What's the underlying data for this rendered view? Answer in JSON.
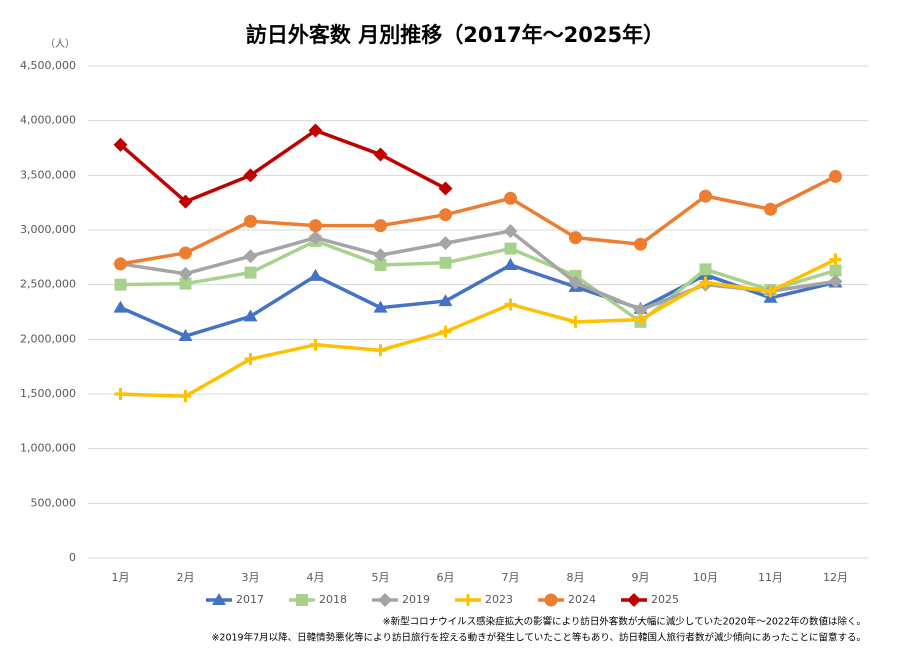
{
  "chart_data": {
    "type": "line",
    "title": "訪日外客数 月別推移（2017年～2025年）",
    "y_unit": "（人）",
    "categories": [
      "1月",
      "2月",
      "3月",
      "4月",
      "5月",
      "6月",
      "7月",
      "8月",
      "9月",
      "10月",
      "11月",
      "12月"
    ],
    "series": [
      {
        "name": "2017",
        "color": "#4472c4",
        "marker": "triangle",
        "values": [
          2290000,
          2030000,
          2210000,
          2580000,
          2290000,
          2350000,
          2680000,
          2480000,
          2280000,
          2590000,
          2380000,
          2520000
        ]
      },
      {
        "name": "2018",
        "color": "#a9d18e",
        "marker": "square",
        "values": [
          2500000,
          2510000,
          2610000,
          2900000,
          2680000,
          2700000,
          2830000,
          2580000,
          2160000,
          2640000,
          2450000,
          2630000
        ]
      },
      {
        "name": "2019",
        "color": "#a5a5a5",
        "marker": "diamond",
        "values": [
          2690000,
          2600000,
          2760000,
          2930000,
          2770000,
          2880000,
          2990000,
          2520000,
          2270000,
          2500000,
          2440000,
          2530000
        ]
      },
      {
        "name": "2023",
        "color": "#ffc000",
        "marker": "plus",
        "values": [
          1500000,
          1480000,
          1820000,
          1950000,
          1900000,
          2070000,
          2320000,
          2160000,
          2180000,
          2520000,
          2440000,
          2730000
        ]
      },
      {
        "name": "2024",
        "color": "#ed7d31",
        "marker": "circle",
        "values": [
          2690000,
          2790000,
          3080000,
          3040000,
          3040000,
          3140000,
          3290000,
          2930000,
          2870000,
          3310000,
          3190000,
          3490000
        ]
      },
      {
        "name": "2025",
        "color": "#c00000",
        "marker": "diamond",
        "values": [
          3780000,
          3260000,
          3500000,
          3910000,
          3690000,
          3380000,
          null,
          null,
          null,
          null,
          null,
          null
        ]
      }
    ],
    "ylim": [
      0,
      4500000
    ],
    "yticks": [
      0,
      {
        "value": 500000,
        "label": "500,000"
      },
      {
        "value": 1000000,
        "label": "1,000,000"
      },
      {
        "value": 1500000,
        "label": "1,500,000"
      },
      {
        "value": 2000000,
        "label": "2,000,000"
      },
      {
        "value": 2500000,
        "label": "2,500,000"
      },
      {
        "value": 3000000,
        "label": "3,000,000"
      },
      {
        "value": 3500000,
        "label": "3,500,000"
      },
      {
        "value": 4000000,
        "label": "4,000,000"
      },
      {
        "value": 4500000,
        "label": "4,500,000"
      }
    ],
    "grid": true,
    "legend": "bottom",
    "notes": [
      "※新型コロナウイルス感染症拡大の影響により訪日外客数が大幅に減少していた2020年～2022年の数値は除く。",
      "※2019年7月以降、日韓情勢悪化等により訪日旅行を控える動きが発生していたこと等もあり、訪日韓国人旅行者数が減少傾向にあったことに留意する。"
    ]
  }
}
